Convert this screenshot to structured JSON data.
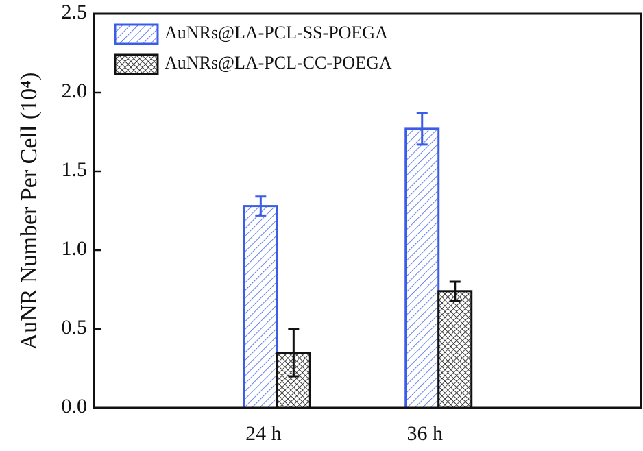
{
  "chart_data": {
    "type": "bar",
    "ylabel": "AuNR Number Per Cell (10⁴)",
    "categories": [
      "24 h",
      "36 h"
    ],
    "series": [
      {
        "name": "AuNRs@LA-PCL-SS-POEGA",
        "color": "#3a5ce8",
        "pattern": "hatch",
        "values": [
          1.28,
          1.77
        ],
        "errors": [
          0.06,
          0.1
        ]
      },
      {
        "name": "AuNRs@LA-PCL-CC-POEGA",
        "color": "#111111",
        "pattern": "crosshatch",
        "values": [
          0.35,
          0.74
        ],
        "errors": [
          0.15,
          0.06
        ]
      }
    ],
    "ylim": [
      0,
      2.5
    ],
    "yticks": [
      {
        "value": 0,
        "label": "0.0"
      },
      {
        "value": 0.5,
        "label": "0.5"
      },
      {
        "value": 1,
        "label": "1.0"
      },
      {
        "value": 1.5,
        "label": "1.5"
      },
      {
        "value": 2,
        "label": "2.0"
      },
      {
        "value": 2.5,
        "label": "2.5"
      }
    ],
    "legend": "upper left"
  }
}
